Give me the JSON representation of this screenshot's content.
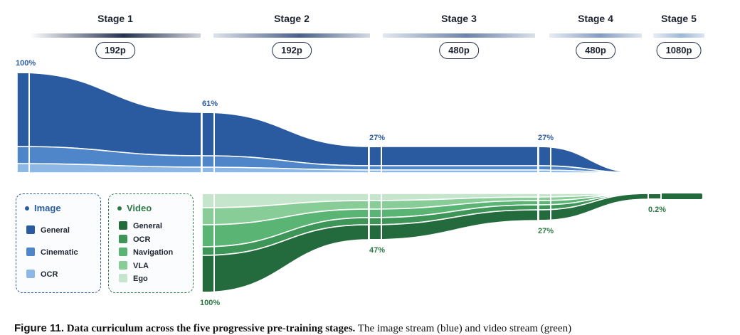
{
  "stages": [
    {
      "title": "Stage 1",
      "resolution": "192p"
    },
    {
      "title": "Stage 2",
      "resolution": "192p"
    },
    {
      "title": "Stage 3",
      "resolution": "480p"
    },
    {
      "title": "Stage 4",
      "resolution": "480p"
    },
    {
      "title": "Stage 5",
      "resolution": "1080p"
    }
  ],
  "image_stream": {
    "percent_labels": [
      "100%",
      "61%",
      "27%",
      "27%"
    ],
    "colors": {
      "general": "#2a5aa0",
      "cinematic": "#4f86c9",
      "ocr": "#8db8e6",
      "label": "#2a5aa0"
    }
  },
  "video_stream": {
    "percent_labels": [
      "100%",
      "47%",
      "27%",
      "0.2%"
    ],
    "colors": {
      "general": "#236b3c",
      "ocr": "#3e9558",
      "navigation": "#5ab473",
      "vla": "#88cd98",
      "ego": "#c5e6cc",
      "label": "#2d7a45"
    }
  },
  "legend": {
    "image": {
      "title": "Image",
      "items": [
        "General",
        "Cinematic",
        "OCR"
      ],
      "border_color": "#2a5aa0"
    },
    "video": {
      "title": "Video",
      "items": [
        "General",
        "OCR",
        "Navigation",
        "VLA",
        "Ego"
      ],
      "border_color": "#2d7a45"
    }
  },
  "caption": {
    "label": "Figure 11.",
    "title": "Data curriculum across the five progressive pre-training stages.",
    "text": "The image stream (blue) and video stream (green)"
  }
}
